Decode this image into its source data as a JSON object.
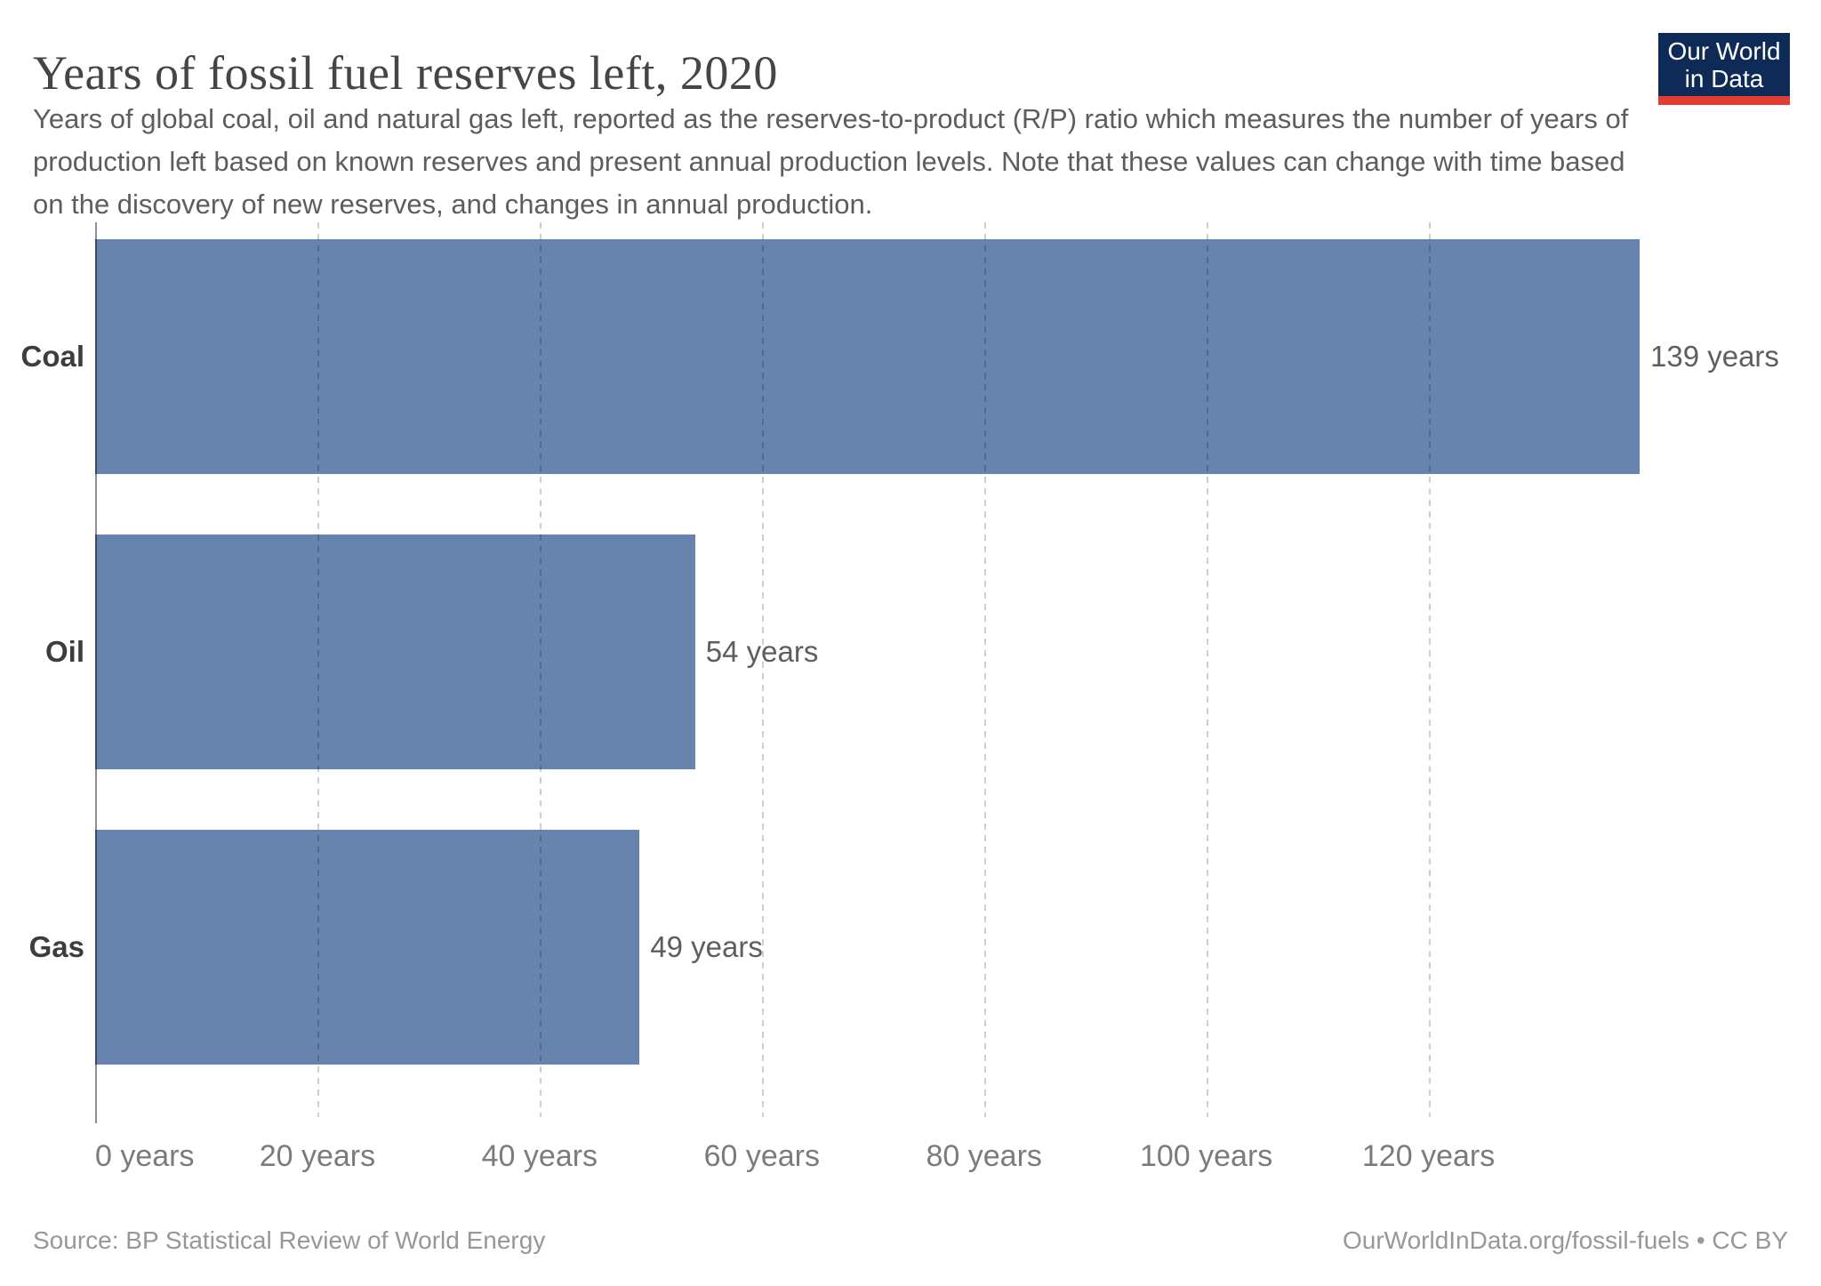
{
  "header": {
    "title": "Years of fossil fuel reserves left, 2020",
    "subtitle": "Years of global coal, oil and natural gas left, reported as the reserves-to-product (R/P) ratio which measures the number of years of production left based on known reserves and present annual production levels. Note that these values can change with time based on the discovery of new reserves, and changes in annual production."
  },
  "logo": {
    "line1": "Our World",
    "line2": "in Data",
    "navy_color": "#0d2b56",
    "red_color": "#e23d33"
  },
  "chart_data": {
    "type": "bar",
    "orientation": "horizontal",
    "title": "Years of fossil fuel reserves left, 2020",
    "categories": [
      "Coal",
      "Oil",
      "Gas"
    ],
    "values": [
      139,
      54,
      49
    ],
    "value_labels": [
      "139 years",
      "54 years",
      "49 years"
    ],
    "xlabel": "",
    "ylabel": "",
    "xlim": [
      0,
      139
    ],
    "x_ticks": [
      0,
      20,
      40,
      60,
      80,
      100,
      120
    ],
    "x_tick_labels": [
      "0 years",
      "20 years",
      "40 years",
      "60 years",
      "80 years",
      "100 years",
      "120 years"
    ],
    "grid": true,
    "gridline_style": "dashed-vertical",
    "legend": "none",
    "bar_color": "#6784af"
  },
  "footer": {
    "source": "Source: BP Statistical Review of World Energy",
    "right": "OurWorldInData.org/fossil-fuels • CC BY"
  }
}
